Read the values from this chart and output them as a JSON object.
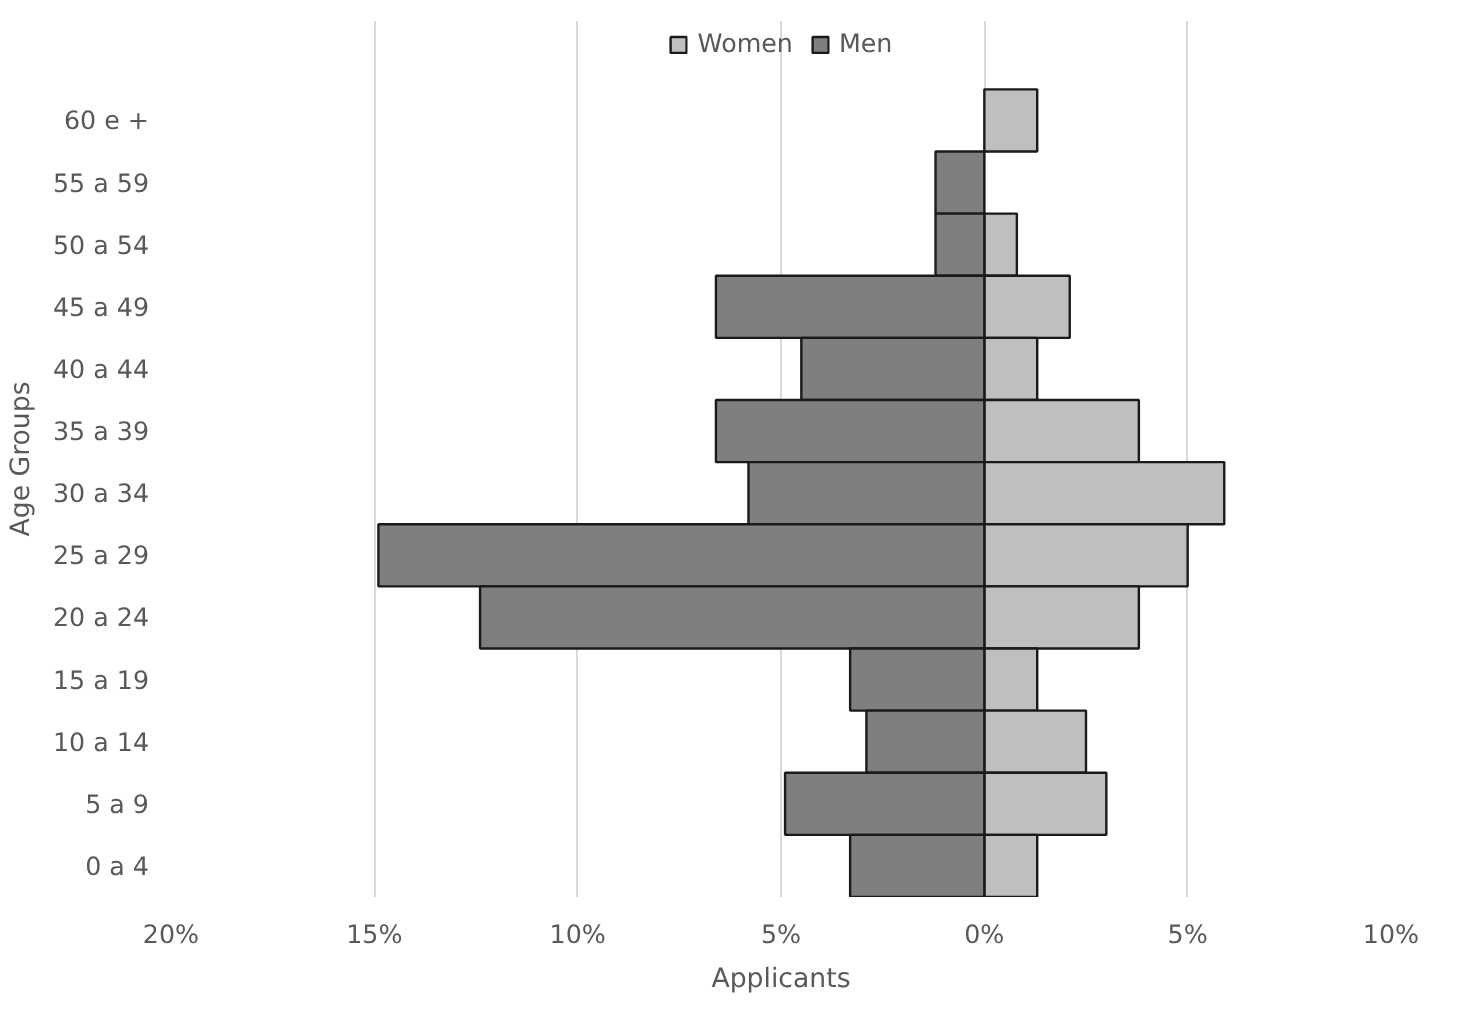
{
  "chart_data": {
    "type": "bar",
    "orientation": "horizontal",
    "stacked": true,
    "categories": [
      "60 e +",
      "55 a 59",
      "50 a 54",
      "45 a 49",
      "40 a 44",
      "35 a 39",
      "30 a 34",
      "25 a 29",
      "20 a 24",
      "15 a 19",
      "10 a 14",
      "5 a 9",
      "0 a 4"
    ],
    "series": [
      {
        "name": "Women",
        "color": "#bfbfbf",
        "values": [
          1.3,
          null,
          0.8,
          2.1,
          1.3,
          3.8,
          5.9,
          5.0,
          3.8,
          1.3,
          2.5,
          3.0,
          1.3
        ]
      },
      {
        "name": "Men",
        "color": "#7f7f7f",
        "values": [
          null,
          -1.2,
          -1.2,
          -6.6,
          -4.5,
          -6.6,
          -5.8,
          -14.9,
          -12.4,
          -3.3,
          -2.9,
          -4.9,
          -3.3
        ]
      }
    ],
    "xlabel": "Applicants",
    "ylabel": "Age Groups",
    "xlim": [
      -20,
      10
    ],
    "xticks": [
      {
        "value": -20,
        "label": "20%"
      },
      {
        "value": -15,
        "label": "15%"
      },
      {
        "value": -10,
        "label": "10%"
      },
      {
        "value": -5,
        "label": "5%"
      },
      {
        "value": 0,
        "label": "0%"
      },
      {
        "value": 5,
        "label": "5%"
      },
      {
        "value": 10,
        "label": "10%"
      }
    ],
    "grid": "x",
    "legend": "top"
  }
}
